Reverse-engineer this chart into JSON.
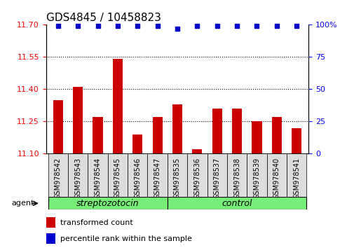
{
  "title": "GDS4845 / 10458823",
  "categories": [
    "GSM978542",
    "GSM978543",
    "GSM978544",
    "GSM978545",
    "GSM978546",
    "GSM978547",
    "GSM978535",
    "GSM978536",
    "GSM978537",
    "GSM978538",
    "GSM978539",
    "GSM978540",
    "GSM978541"
  ],
  "bar_values": [
    11.35,
    11.41,
    11.27,
    11.54,
    11.19,
    11.27,
    11.33,
    11.12,
    11.31,
    11.31,
    11.25,
    11.27,
    11.22
  ],
  "percentile_values": [
    99,
    99,
    99,
    99,
    99,
    99,
    97,
    99,
    99,
    99,
    99,
    99,
    99
  ],
  "ylim_left": [
    11.1,
    11.7
  ],
  "ylim_right": [
    0,
    100
  ],
  "yticks_left": [
    11.1,
    11.25,
    11.4,
    11.55,
    11.7
  ],
  "yticks_right": [
    0,
    25,
    50,
    75,
    100
  ],
  "bar_color": "#cc0000",
  "dot_color": "#0000cc",
  "group1_label": "streptozotocin",
  "group2_label": "control",
  "group1_count": 6,
  "group2_count": 7,
  "group_bg_color": "#77ee77",
  "agent_label": "agent",
  "legend_bar_label": "transformed count",
  "legend_dot_label": "percentile rank within the sample",
  "bar_baseline": 11.1,
  "dotted_gridlines": [
    11.25,
    11.4,
    11.55
  ],
  "title_fontsize": 11,
  "tick_fontsize": 8,
  "xtick_fontsize": 7,
  "legend_fontsize": 8
}
